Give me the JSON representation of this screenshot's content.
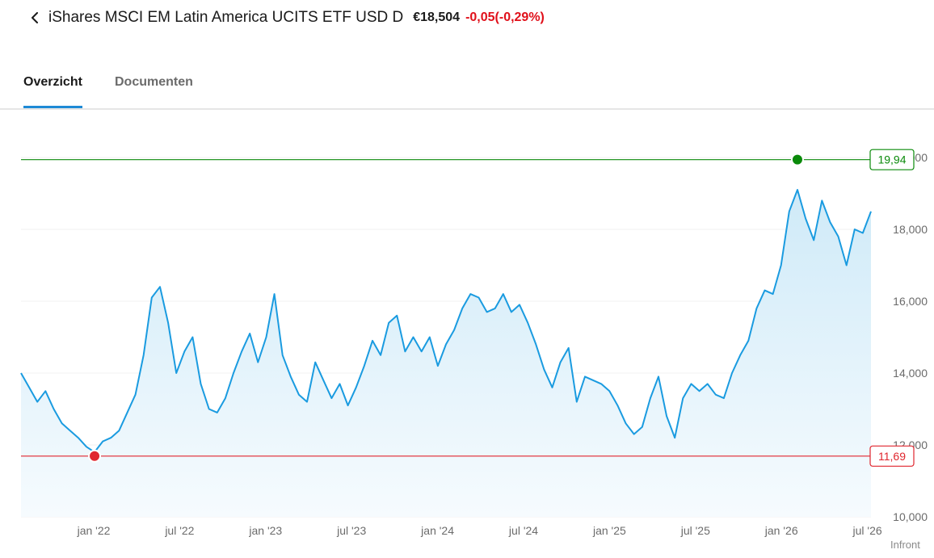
{
  "header": {
    "title": "iShares MSCI EM Latin America UCITS ETF USD D",
    "price": "€18,504",
    "change": "-0,05(-0,29%)"
  },
  "tabs": [
    {
      "label": "Overzicht",
      "active": true
    },
    {
      "label": "Documenten",
      "active": false
    }
  ],
  "colors": {
    "line": "#1a9be0",
    "high": "#0a8a0a",
    "low": "#e0262e",
    "negative": "#e0101a",
    "accent": "#1e8ad6"
  },
  "chart_data": {
    "type": "area",
    "x_tick_labels": [
      "jan '22",
      "jul '22",
      "jan '23",
      "jul '23",
      "jan '24",
      "jul '24",
      "jan '25",
      "jul '25",
      "jan '26",
      "jul '26"
    ],
    "y_ticks": [
      "10,000",
      "12,000",
      "14,000",
      "16,000",
      "18,000",
      "20,000"
    ],
    "ylim": [
      10,
      20
    ],
    "x_range": [
      "2021-10",
      "2026-08"
    ],
    "high_label": "19,94",
    "low_label": "11,69",
    "high": 19.94,
    "low": 11.69,
    "credit": "Infront",
    "series": [
      {
        "values": [
          14.0,
          13.6,
          13.2,
          13.5,
          13.0,
          12.6,
          12.4,
          12.2,
          11.95,
          11.8,
          12.1,
          12.2,
          12.4,
          12.9,
          13.4,
          14.5,
          16.1,
          16.4,
          15.4,
          14.0,
          14.6,
          15.0,
          13.7,
          13.0,
          12.9,
          13.3,
          14.0,
          14.6,
          15.1,
          14.3,
          15.0,
          16.2,
          14.5,
          13.9,
          13.4,
          13.2,
          14.3,
          13.8,
          13.3,
          13.7,
          13.1,
          13.6,
          14.2,
          14.9,
          14.5,
          15.4,
          15.6,
          14.6,
          15.0,
          14.6,
          15.0,
          14.2,
          14.8,
          15.2,
          15.8,
          16.2,
          16.1,
          15.7,
          15.8,
          16.2,
          15.7,
          15.9,
          15.4,
          14.8,
          14.1,
          13.6,
          14.3,
          14.7,
          13.2,
          13.9,
          13.8,
          13.7,
          13.5,
          13.1,
          12.6,
          12.3,
          12.5,
          13.3,
          13.9,
          12.8,
          12.2,
          13.3,
          13.7,
          13.5,
          13.7,
          13.4,
          13.3,
          14.0,
          14.5,
          14.9,
          15.8,
          16.3,
          16.2,
          17.0,
          18.5,
          19.1,
          18.3,
          17.7,
          18.8,
          18.2,
          17.8,
          17.0,
          18.0,
          17.9,
          18.5
        ]
      }
    ]
  }
}
